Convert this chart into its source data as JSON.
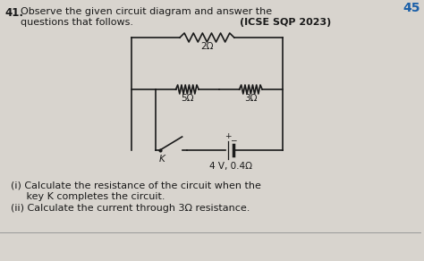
{
  "bg_color": "#d8d4ce",
  "title_number": "41.",
  "title_text1": "Observe the given circuit diagram and answer the",
  "title_text2": "questions that follows.",
  "title_right": "(ICSE SQP 2023)",
  "corner_number": "45",
  "resistor_2": "2Ω",
  "resistor_5": "5Ω",
  "resistor_3": "3Ω",
  "battery_label": "4 V, 0.4Ω",
  "key_label": "K",
  "circuit_color": "#1a1a1a",
  "text_color": "#1a1a1a",
  "q1_line1": "(i) Calculate the resistance of the circuit when the",
  "q1_line2": "     key Κ completes the circuit.",
  "q2": "(ii) Calculate the current through 3Ω resistance."
}
